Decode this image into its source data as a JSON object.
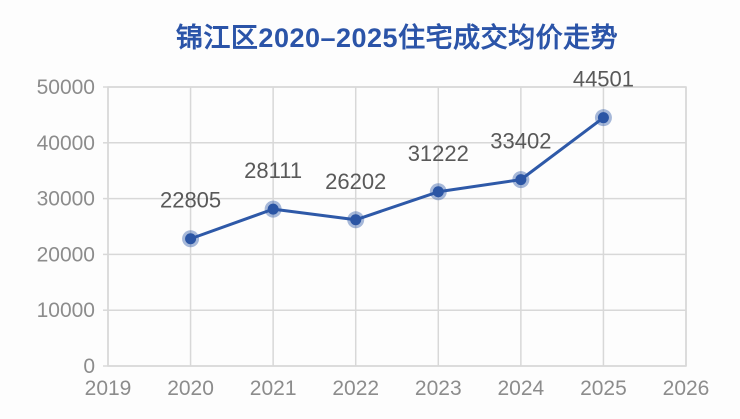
{
  "chart_data": {
    "type": "line",
    "title": "锦江区2020–2025住宅成交均价走势",
    "x": [
      2020,
      2021,
      2022,
      2023,
      2024,
      2025
    ],
    "values": [
      22805,
      28111,
      26202,
      31222,
      33402,
      44501
    ],
    "data_labels": [
      "22805",
      "28111",
      "26202",
      "31222",
      "33402",
      "44501"
    ],
    "xticks": [
      2019,
      2020,
      2021,
      2022,
      2023,
      2024,
      2025,
      2026
    ],
    "yticks": [
      0,
      10000,
      20000,
      30000,
      40000,
      50000
    ],
    "xlim": [
      2019,
      2026
    ],
    "ylim": [
      0,
      50000
    ],
    "xlabel": "",
    "ylabel": "",
    "grid": true,
    "legend": false,
    "colors": {
      "title": "#2B54A8",
      "line": "#2E59A8",
      "marker": "#2B55A4",
      "marker_halo": "rgba(46,89,168,0.42)",
      "grid": "#D8D8D8",
      "axis_labels": "#8C8C8C",
      "data_labels": "#595959"
    }
  }
}
